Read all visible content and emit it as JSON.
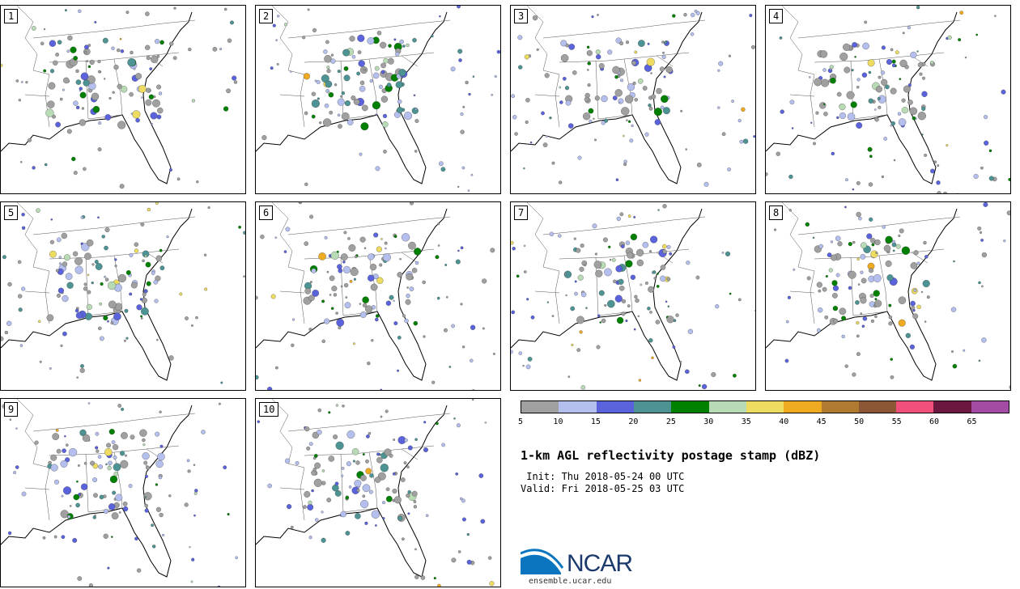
{
  "panels": [
    "1",
    "2",
    "3",
    "4",
    "5",
    "6",
    "7",
    "8",
    "9",
    "10"
  ],
  "colorbar": {
    "colors": [
      "#a0a0a0",
      "#b4bfee",
      "#5a63db",
      "#4d9393",
      "#008000",
      "#b8dab5",
      "#eddc5f",
      "#eeaa20",
      "#b07a30",
      "#8b5735",
      "#f0507a",
      "#6a1840",
      "#a44ca4"
    ],
    "ticks": [
      "5",
      "10",
      "15",
      "20",
      "25",
      "30",
      "35",
      "40",
      "45",
      "50",
      "55",
      "60",
      "65"
    ]
  },
  "title": "1-km AGL reflectivity postage stamp (dBZ)",
  "init": " Init: Thu 2018-05-24 00 UTC",
  "valid": "Valid: Fri 2018-05-25 03 UTC",
  "logo": {
    "text": "NCAR",
    "url": "ensemble.ucar.edu",
    "icon": "ncar-logo-icon"
  }
}
